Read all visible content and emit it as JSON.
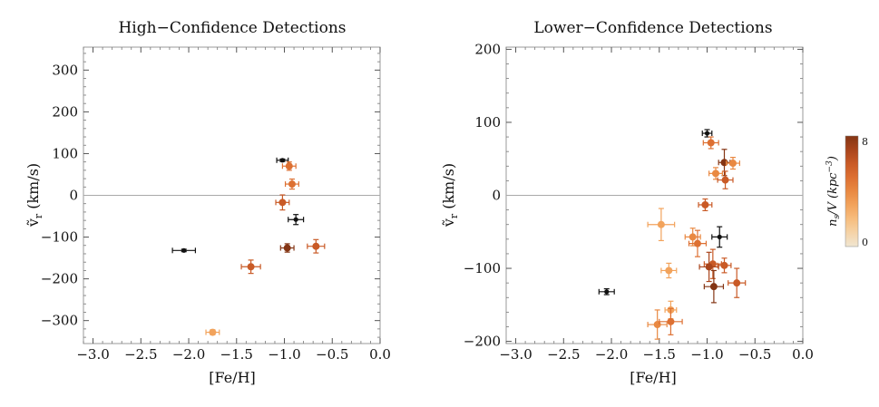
{
  "chart_data": [
    {
      "type": "scatter",
      "title": "High−Confidence Detections",
      "xlabel": "[Fe/H]",
      "ylabel_main": "ṽ",
      "ylabel_sub": "r",
      "ylabel_unit": " (km/s)",
      "xlim": [
        -3.1,
        0.0
      ],
      "ylim": [
        -355,
        355
      ],
      "xticks": [
        -3.0,
        -2.5,
        -2.0,
        -1.5,
        -1.0,
        -0.5,
        0.0
      ],
      "xtick_labels": [
        "−3.0",
        "−2.5",
        "−2.0",
        "−1.5",
        "−1.0",
        "−0.5",
        "0.0"
      ],
      "yticks": [
        -300,
        -200,
        -100,
        0,
        100,
        200,
        300
      ],
      "ytick_labels": [
        "−300",
        "−200",
        "−100",
        "0",
        "100",
        "200",
        "300"
      ],
      "zero_line": true,
      "points": [
        {
          "x": -2.05,
          "y": -132,
          "xerr": 0.12,
          "yerr": 3,
          "density": 9
        },
        {
          "x": -1.02,
          "y": 84,
          "xerr": 0.06,
          "yerr": 3,
          "density": 9
        },
        {
          "x": -0.95,
          "y": 70,
          "xerr": 0.07,
          "yerr": 10,
          "density": 5
        },
        {
          "x": -0.92,
          "y": 27,
          "xerr": 0.07,
          "yerr": 12,
          "density": 5
        },
        {
          "x": -1.02,
          "y": -17,
          "xerr": 0.07,
          "yerr": 18,
          "density": 6
        },
        {
          "x": -0.88,
          "y": -58,
          "xerr": 0.08,
          "yerr": 12,
          "density": 9
        },
        {
          "x": -0.97,
          "y": -126,
          "xerr": 0.07,
          "yerr": 10,
          "density": 8
        },
        {
          "x": -0.67,
          "y": -122,
          "xerr": 0.09,
          "yerr": 16,
          "density": 6
        },
        {
          "x": -1.35,
          "y": -171,
          "xerr": 0.1,
          "yerr": 16,
          "density": 6
        },
        {
          "x": -1.75,
          "y": -328,
          "xerr": 0.07,
          "yerr": 6,
          "density": 3
        }
      ]
    },
    {
      "type": "scatter",
      "title": "Lower−Confidence Detections",
      "xlabel": "[Fe/H]",
      "ylabel_main": "ṽ",
      "ylabel_sub": "r",
      "ylabel_unit": " (km/s)",
      "xlim": [
        -3.1,
        0.0
      ],
      "ylim": [
        -203,
        203
      ],
      "xticks": [
        -3.0,
        -2.5,
        -2.0,
        -1.5,
        -1.0,
        -0.5,
        0.0
      ],
      "xtick_labels": [
        "−3.0",
        "−2.5",
        "−2.0",
        "−1.5",
        "−1.0",
        "−0.5",
        "0.0"
      ],
      "yticks": [
        -200,
        -100,
        0,
        100,
        200
      ],
      "ytick_labels": [
        "−200",
        "−100",
        "0",
        "100",
        "200"
      ],
      "zero_line": true,
      "points": [
        {
          "x": -1.0,
          "y": 85,
          "xerr": 0.05,
          "yerr": 5,
          "density": 9
        },
        {
          "x": -0.96,
          "y": 72,
          "xerr": 0.08,
          "yerr": 8,
          "density": 5
        },
        {
          "x": -0.82,
          "y": 45,
          "xerr": 0.06,
          "yerr": 18,
          "density": 8
        },
        {
          "x": -0.73,
          "y": 44,
          "xerr": 0.07,
          "yerr": 8,
          "density": 4
        },
        {
          "x": -0.91,
          "y": 30,
          "xerr": 0.07,
          "yerr": 8,
          "density": 4
        },
        {
          "x": -0.81,
          "y": 21,
          "xerr": 0.08,
          "yerr": 12,
          "density": 6
        },
        {
          "x": -1.02,
          "y": -13,
          "xerr": 0.07,
          "yerr": 8,
          "density": 6
        },
        {
          "x": -1.48,
          "y": -40,
          "xerr": 0.14,
          "yerr": 22,
          "density": 3
        },
        {
          "x": -0.87,
          "y": -57,
          "xerr": 0.08,
          "yerr": 14,
          "density": 9
        },
        {
          "x": -1.15,
          "y": -57,
          "xerr": 0.08,
          "yerr": 12,
          "density": 4
        },
        {
          "x": -1.1,
          "y": -66,
          "xerr": 0.09,
          "yerr": 18,
          "density": 5
        },
        {
          "x": -0.94,
          "y": -94,
          "xerr": 0.09,
          "yerr": 20,
          "density": 6
        },
        {
          "x": -0.98,
          "y": -98,
          "xerr": 0.1,
          "yerr": 20,
          "density": 7
        },
        {
          "x": -0.82,
          "y": -96,
          "xerr": 0.07,
          "yerr": 10,
          "density": 6
        },
        {
          "x": -1.4,
          "y": -103,
          "xerr": 0.08,
          "yerr": 10,
          "density": 3
        },
        {
          "x": -0.69,
          "y": -120,
          "xerr": 0.09,
          "yerr": 20,
          "density": 6
        },
        {
          "x": -0.93,
          "y": -125,
          "xerr": 0.1,
          "yerr": 22,
          "density": 8
        },
        {
          "x": -2.05,
          "y": -132,
          "xerr": 0.08,
          "yerr": 4,
          "density": 9
        },
        {
          "x": -1.38,
          "y": -157,
          "xerr": 0.06,
          "yerr": 12,
          "density": 3
        },
        {
          "x": -1.52,
          "y": -177,
          "xerr": 0.1,
          "yerr": 20,
          "density": 4
        },
        {
          "x": -1.38,
          "y": -173,
          "xerr": 0.12,
          "yerr": 18,
          "density": 5
        }
      ]
    }
  ],
  "colorbar": {
    "label": "n",
    "label_sub": "s",
    "label_rest": "/V (kpc",
    "label_sup": "−3",
    "label_close": ")",
    "min": 0,
    "max": 8,
    "tick_min_label": "0",
    "tick_max_label": "8",
    "colors": [
      "#f0e6d2",
      "#f5d3a7",
      "#f7bd7e",
      "#f2a35c",
      "#e98942",
      "#dd7032",
      "#c95a26",
      "#a9451c",
      "#843514"
    ],
    "black_color": "#111111"
  }
}
